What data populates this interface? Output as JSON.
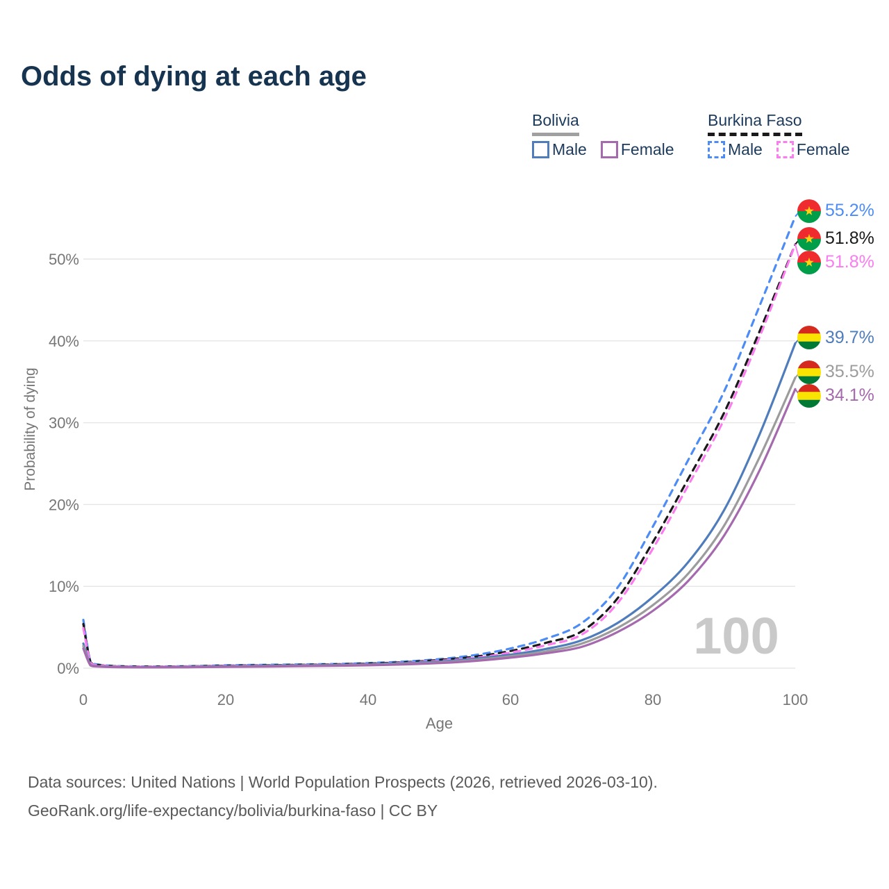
{
  "title": "Odds of dying at each age",
  "watermark": "100",
  "legend": {
    "groups": [
      {
        "name": "Bolivia",
        "line_style": "solid",
        "underline_color": "#a0a0a0",
        "items": [
          {
            "label": "Male",
            "color": "#4f7cba"
          },
          {
            "label": "Female",
            "color": "#a569ae"
          }
        ]
      },
      {
        "name": "Burkina Faso",
        "line_style": "dashed",
        "underline_color": "#1a1a1a",
        "items": [
          {
            "label": "Male",
            "color": "#4d8cf5"
          },
          {
            "label": "Female",
            "color": "#fa7cee"
          }
        ]
      }
    ]
  },
  "chart_data": {
    "type": "line",
    "title": "Odds of dying at each age",
    "xlabel": "Age",
    "ylabel": "Probability of dying",
    "xlim": [
      0,
      100
    ],
    "ylim_pct": [
      0,
      57
    ],
    "grid": "horizontal",
    "x_ticks": [
      0,
      20,
      40,
      60,
      80,
      100
    ],
    "y_ticks": [
      {
        "value": 0,
        "label": "0%"
      },
      {
        "value": 10,
        "label": "10%"
      },
      {
        "value": 20,
        "label": "20%"
      },
      {
        "value": 30,
        "label": "30%"
      },
      {
        "value": 40,
        "label": "40%"
      },
      {
        "value": 50,
        "label": "50%"
      }
    ],
    "hover_age_indicator": "100",
    "ages": [
      0,
      1,
      2,
      5,
      10,
      15,
      20,
      25,
      30,
      35,
      40,
      45,
      50,
      55,
      60,
      65,
      70,
      75,
      80,
      85,
      90,
      95,
      100
    ],
    "series": [
      {
        "name": "Burkina Faso Male",
        "country": "Burkina Faso",
        "sex": "Male",
        "color": "#4d8cf5",
        "dash": true,
        "flag": "burkina-faso",
        "end_label": "55.2%",
        "values_pct": [
          5.9,
          0.8,
          0.45,
          0.25,
          0.2,
          0.25,
          0.35,
          0.4,
          0.45,
          0.5,
          0.62,
          0.8,
          1.1,
          1.6,
          2.4,
          3.6,
          5.5,
          9.8,
          17.3,
          25.5,
          33.8,
          44.3,
          55.2
        ]
      },
      {
        "name": "Burkina Faso Both sexes",
        "country": "Burkina Faso",
        "sex": "All",
        "color": "#1a1a1a",
        "dash": true,
        "flag": "burkina-faso",
        "end_label": "51.8%",
        "values_pct": [
          5.4,
          0.72,
          0.4,
          0.22,
          0.18,
          0.22,
          0.3,
          0.35,
          0.4,
          0.46,
          0.56,
          0.72,
          1.0,
          1.4,
          2.1,
          3.1,
          4.5,
          8.5,
          15.4,
          23.2,
          31.2,
          41.2,
          51.8
        ]
      },
      {
        "name": "Burkina Faso Female",
        "country": "Burkina Faso",
        "sex": "Female",
        "color": "#fa7cee",
        "dash": true,
        "flag": "burkina-faso",
        "end_label": "51.8%",
        "values_pct": [
          4.9,
          0.65,
          0.36,
          0.2,
          0.16,
          0.2,
          0.27,
          0.31,
          0.36,
          0.42,
          0.5,
          0.65,
          0.9,
          1.25,
          1.9,
          2.8,
          4.1,
          7.9,
          14.6,
          22.4,
          30.4,
          40.5,
          51.8
        ]
      },
      {
        "name": "Bolivia Male",
        "country": "Bolivia",
        "sex": "Male",
        "color": "#4f7cba",
        "dash": false,
        "flag": "bolivia",
        "end_label": "39.7%",
        "values_pct": [
          3.0,
          0.4,
          0.25,
          0.15,
          0.12,
          0.16,
          0.22,
          0.28,
          0.33,
          0.38,
          0.46,
          0.6,
          0.8,
          1.15,
          1.65,
          2.35,
          3.4,
          5.5,
          8.7,
          13.0,
          19.3,
          28.6,
          39.7
        ]
      },
      {
        "name": "Bolivia Both sexes",
        "country": "Bolivia",
        "sex": "All",
        "color": "#9c9c9c",
        "dash": false,
        "flag": "bolivia",
        "end_label": "35.5%",
        "values_pct": [
          2.7,
          0.36,
          0.22,
          0.13,
          0.1,
          0.13,
          0.18,
          0.23,
          0.28,
          0.33,
          0.4,
          0.52,
          0.7,
          1.0,
          1.45,
          2.05,
          3.0,
          4.9,
          7.7,
          11.6,
          17.4,
          25.8,
          35.5
        ]
      },
      {
        "name": "Bolivia Female",
        "country": "Bolivia",
        "sex": "Female",
        "color": "#a569ae",
        "dash": false,
        "flag": "bolivia",
        "end_label": "34.1%",
        "values_pct": [
          2.4,
          0.32,
          0.2,
          0.12,
          0.09,
          0.11,
          0.15,
          0.19,
          0.24,
          0.28,
          0.35,
          0.45,
          0.62,
          0.88,
          1.28,
          1.82,
          2.6,
          4.4,
          7.0,
          10.7,
          16.2,
          24.2,
          34.1
        ]
      }
    ],
    "flag_colors": {
      "burkina_faso": {
        "top": "#ef2b2d",
        "bottom": "#009e49",
        "star": "#fcd116"
      },
      "bolivia": {
        "red": "#d52b1e",
        "yellow": "#f9e300",
        "green": "#007934"
      }
    }
  },
  "footer": {
    "line1": "Data sources: United Nations | World Population Prospects (2026, retrieved 2026-03-10).",
    "line2": "GeoRank.org/life-expectancy/bolivia/burkina-faso | CC BY"
  }
}
